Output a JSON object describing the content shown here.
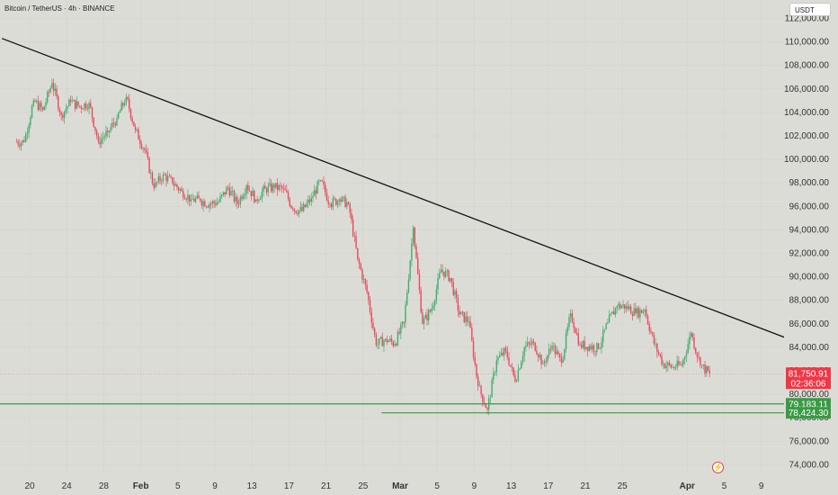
{
  "header": {
    "title": "Bitcoin / TetherUS · 4h · BINANCE",
    "currency": "USDT"
  },
  "colors": {
    "background": "#dcdcd6",
    "bull": "#3fae6e",
    "bear": "#e84a5f",
    "trendline": "#111111",
    "support": "#3a9a44",
    "last_price": "#f23645"
  },
  "chart_data": {
    "type": "candlestick",
    "y_axis": {
      "ticks": [
        "112,000.00",
        "110,000.00",
        "108,000.00",
        "106,000.00",
        "104,000.00",
        "102,000.00",
        "100,000.00",
        "98,000.00",
        "96,000.00",
        "94,000.00",
        "92,000.00",
        "90,000.00",
        "88,000.00",
        "86,000.00",
        "84,000.00",
        "82,000.00",
        "80,000.00",
        "78,000.00",
        "76,000.00",
        "74,000.00"
      ]
    },
    "x_axis": {
      "ticks": [
        "20",
        "24",
        "28",
        "Feb",
        "5",
        "9",
        "13",
        "17",
        "21",
        "25",
        "Mar",
        "5",
        "9",
        "13",
        "17",
        "21",
        "25",
        "Apr",
        "5",
        "9"
      ],
      "bold_ticks": [
        "Feb",
        "Mar",
        "Apr"
      ]
    },
    "price_series": [
      [
        "Jan 19",
        101500
      ],
      [
        "Jan 20",
        105000
      ],
      [
        "Jan 21",
        104200
      ],
      [
        "Jan 22",
        106500
      ],
      [
        "Jan 23",
        103800
      ],
      [
        "Jan 24",
        104900
      ],
      [
        "Jan 25",
        104500
      ],
      [
        "Jan 26",
        104800
      ],
      [
        "Jan 27",
        101500
      ],
      [
        "Jan 28",
        102300
      ],
      [
        "Jan 29",
        103500
      ],
      [
        "Jan 30",
        105300
      ],
      [
        "Jan 31",
        102500
      ],
      [
        "Feb 1",
        100800
      ],
      [
        "Feb 2",
        97600
      ],
      [
        "Feb 3",
        98700
      ],
      [
        "Feb 4",
        98000
      ],
      [
        "Feb 5",
        97300
      ],
      [
        "Feb 6",
        96600
      ],
      [
        "Feb 7",
        96500
      ],
      [
        "Feb 8",
        96200
      ],
      [
        "Feb 9",
        96400
      ],
      [
        "Feb 10",
        97600
      ],
      [
        "Feb 11",
        96200
      ],
      [
        "Feb 12",
        97800
      ],
      [
        "Feb 13",
        96600
      ],
      [
        "Feb 14",
        97500
      ],
      [
        "Feb 15",
        97600
      ],
      [
        "Feb 16",
        97500
      ],
      [
        "Feb 17",
        95800
      ],
      [
        "Feb 18",
        95600
      ],
      [
        "Feb 19",
        96700
      ],
      [
        "Feb 20",
        98200
      ],
      [
        "Feb 21",
        96200
      ],
      [
        "Feb 22",
        96600
      ],
      [
        "Feb 23",
        96200
      ],
      [
        "Feb 24",
        91500
      ],
      [
        "Feb 25",
        88700
      ],
      [
        "Feb 26",
        84200
      ],
      [
        "Feb 27",
        84700
      ],
      [
        "Feb 28",
        84300
      ],
      [
        "Mar 1",
        86100
      ],
      [
        "Mar 2",
        94200
      ],
      [
        "Mar 3",
        86000
      ],
      [
        "Mar 4",
        87300
      ],
      [
        "Mar 5",
        90600
      ],
      [
        "Mar 6",
        89900
      ],
      [
        "Mar 7",
        86800
      ],
      [
        "Mar 8",
        86200
      ],
      [
        "Mar 9",
        80700
      ],
      [
        "Mar 10",
        78700
      ],
      [
        "Mar 11",
        82900
      ],
      [
        "Mar 12",
        83700
      ],
      [
        "Mar 13",
        81100
      ],
      [
        "Mar 14",
        84000
      ],
      [
        "Mar 15",
        84400
      ],
      [
        "Mar 16",
        82600
      ],
      [
        "Mar 17",
        84100
      ],
      [
        "Mar 18",
        82700
      ],
      [
        "Mar 19",
        86900
      ],
      [
        "Mar 20",
        84200
      ],
      [
        "Mar 21",
        84100
      ],
      [
        "Mar 22",
        83900
      ],
      [
        "Mar 23",
        86100
      ],
      [
        "Mar 24",
        87500
      ],
      [
        "Mar 25",
        87500
      ],
      [
        "Mar 26",
        86900
      ],
      [
        "Mar 27",
        87200
      ],
      [
        "Mar 28",
        84300
      ],
      [
        "Mar 29",
        82600
      ],
      [
        "Mar 30",
        82300
      ],
      [
        "Mar 31",
        82500
      ],
      [
        "Apr 1",
        85200
      ],
      [
        "Apr 2",
        82500
      ],
      [
        "Apr 3",
        81750.91
      ]
    ],
    "trendline": {
      "from": [
        "Jan 17",
        110300
      ],
      "to": [
        "Apr 9",
        84500
      ]
    },
    "support_levels": [
      79183.11,
      78424.3
    ],
    "labels": {
      "last_price": "81,750.91",
      "countdown": "02:36:06",
      "support_upper": "79,183.11",
      "support_lower": "78,424.30"
    }
  }
}
